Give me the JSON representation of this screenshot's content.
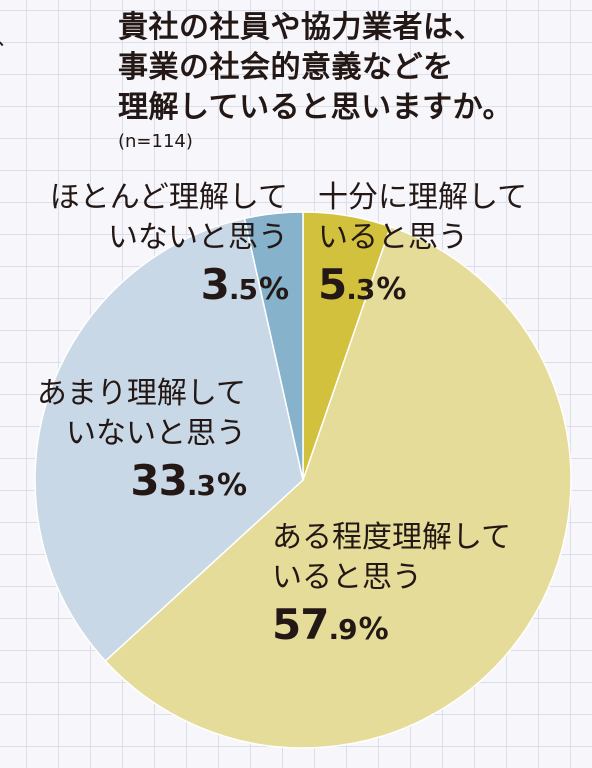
{
  "title": {
    "lines": [
      "貴社の社員や協力業者は、",
      "事業の社会的意義などを",
      "理解していると思いますか。"
    ],
    "sample": "(n=114)"
  },
  "chart_data": {
    "type": "pie",
    "start_angle_deg": 0,
    "direction": "clockwise",
    "slices": [
      {
        "label_lines": [
          "十分に理解して",
          "いると思う"
        ],
        "value": 5.3,
        "pct_int": "5",
        "pct_dec": ".3",
        "color": "#d2c13c"
      },
      {
        "label_lines": [
          "ある程度理解して",
          "いると思う"
        ],
        "value": 57.9,
        "pct_int": "57",
        "pct_dec": ".9",
        "color": "#e6dc99"
      },
      {
        "label_lines": [
          "あまり理解して",
          "いないと思う"
        ],
        "value": 33.3,
        "pct_int": "33",
        "pct_dec": ".3",
        "color": "#c9d8e6"
      },
      {
        "label_lines": [
          "ほとんど理解して",
          "いないと思う"
        ],
        "value": 3.5,
        "pct_int": "3",
        "pct_dec": ".5",
        "color": "#86b2cc"
      }
    ],
    "unit": "%"
  }
}
